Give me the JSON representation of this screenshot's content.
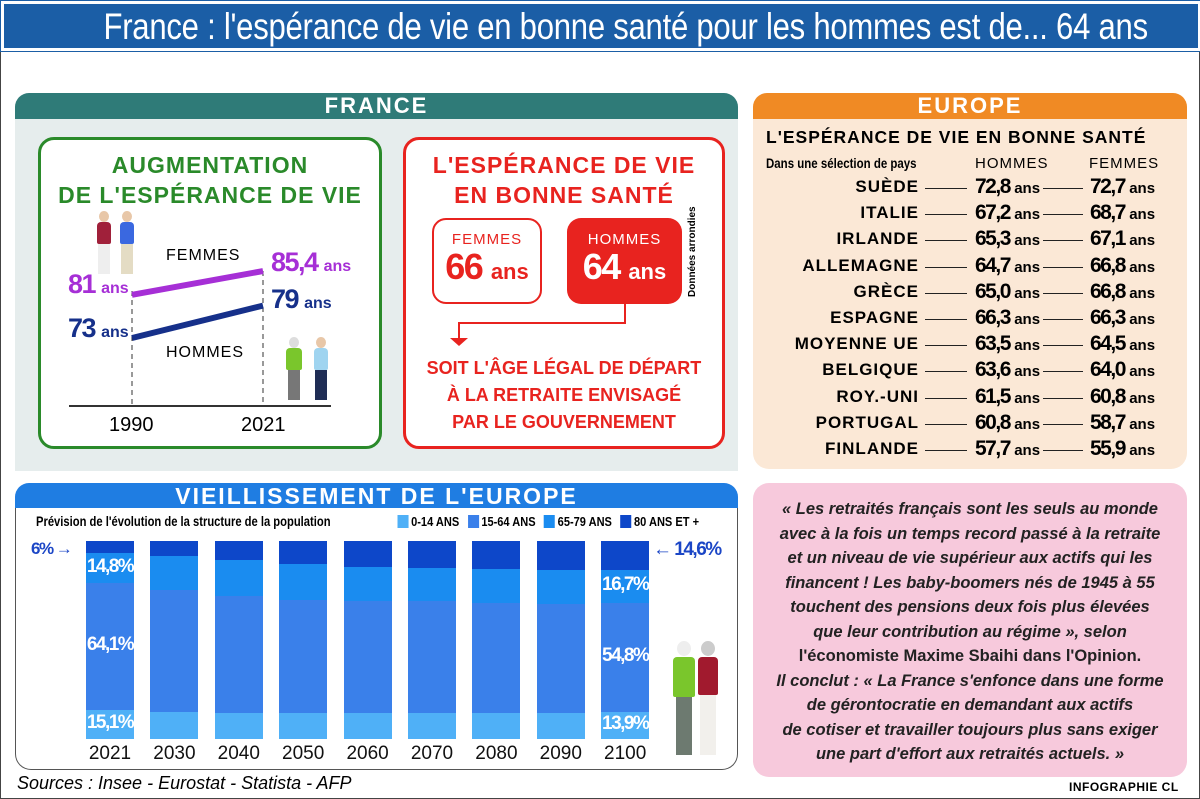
{
  "title": "France : l'espérance de vie en bonne santé pour les hommes est de... 64 ans",
  "colors": {
    "title_bar": "#1b5ea6",
    "france": "#2f7b78",
    "europe": "#f08a24",
    "aging": "#1f7de2",
    "green": "#2a8a2a",
    "red": "#e8231f",
    "femmes_line": "#a62fd6",
    "hommes_line": "#16308a"
  },
  "france": {
    "header": "FRANCE",
    "augmentation": {
      "title_line1": "AUGMENTATION",
      "title_line2": "DE L'ESPÉRANCE DE VIE",
      "femmes_label": "FEMMES",
      "hommes_label": "HOMMES",
      "femmes_1990": "81",
      "femmes_2021": "85,4",
      "hommes_1990": "73",
      "hommes_2021": "79",
      "unit": "ans",
      "year1": "1990",
      "year2": "2021"
    },
    "bonne_sante": {
      "title_line1": "L'ESPÉRANCE DE VIE",
      "title_line2": "EN BONNE SANTÉ",
      "femmes_label": "FEMMES",
      "femmes_value": "66",
      "hommes_label": "HOMMES",
      "hommes_value": "64",
      "unit": "ans",
      "note": "Données arrondies",
      "conclusion": [
        "SOIT L'ÂGE LÉGAL DE DÉPART",
        "À LA RETRAITE ENVISAGÉ",
        "PAR LE GOUVERNEMENT"
      ]
    }
  },
  "europe": {
    "header": "EUROPE",
    "title": "L'ESPÉRANCE DE VIE EN BONNE SANTÉ",
    "subtitle": "Dans une sélection de pays",
    "col_hommes": "HOMMES",
    "col_femmes": "FEMMES",
    "unit": "ans",
    "rows": [
      {
        "country": "SUÈDE",
        "hommes": "72,8",
        "femmes": "72,7"
      },
      {
        "country": "ITALIE",
        "hommes": "67,2",
        "femmes": "68,7"
      },
      {
        "country": "IRLANDE",
        "hommes": "65,3",
        "femmes": "67,1"
      },
      {
        "country": "ALLEMAGNE",
        "hommes": "64,7",
        "femmes": "66,8"
      },
      {
        "country": "GRÈCE",
        "hommes": "65,0",
        "femmes": "66,8"
      },
      {
        "country": "ESPAGNE",
        "hommes": "66,3",
        "femmes": "66,3"
      },
      {
        "country": "MOYENNE UE",
        "hommes": "63,5",
        "femmes": "64,5"
      },
      {
        "country": "BELGIQUE",
        "hommes": "63,6",
        "femmes": "64,0"
      },
      {
        "country": "ROY.-UNI",
        "hommes": "61,5",
        "femmes": "60,8"
      },
      {
        "country": "PORTUGAL",
        "hommes": "60,8",
        "femmes": "58,7"
      },
      {
        "country": "FINLANDE",
        "hommes": "57,7",
        "femmes": "55,9"
      }
    ]
  },
  "aging": {
    "header": "VIEILLISSEMENT DE L'EUROPE",
    "subtitle": "Prévision de l'évolution de la structure de la population",
    "label_80_2021": "6%",
    "label_80_2100": "14,6%",
    "labels_2021": {
      "a65_79": "14,8%",
      "a15_64": "64,1%",
      "a0_14": "15,1%"
    },
    "labels_2100": {
      "a65_79": "16,7%",
      "a15_64": "54,8%",
      "a0_14": "13,9%"
    }
  },
  "chart_data": [
    {
      "type": "line",
      "x": [
        "1990",
        "2021"
      ],
      "series": [
        {
          "name": "FEMMES",
          "values": [
            81,
            85.4
          ]
        },
        {
          "name": "HOMMES",
          "values": [
            73,
            79
          ]
        }
      ],
      "ylabel": "",
      "xlabel": "",
      "grid": false
    },
    {
      "type": "bar",
      "stacked": true,
      "title": "Prévision de l'évolution de la structure de la population",
      "categories": [
        "2021",
        "2030",
        "2040",
        "2050",
        "2060",
        "2070",
        "2080",
        "2090",
        "2100"
      ],
      "series": [
        {
          "name": "0-14 ANS",
          "color": "#4fb0f7",
          "values": [
            15.1,
            14.0,
            13.4,
            13.4,
            13.4,
            13.4,
            13.4,
            13.4,
            13.9
          ]
        },
        {
          "name": "15-64 ANS",
          "color": "#3a80ea",
          "values": [
            64.1,
            61.6,
            58.9,
            56.9,
            56.3,
            56.3,
            55.7,
            55.0,
            54.8
          ]
        },
        {
          "name": "65-79 ANS",
          "color": "#1a8cf0",
          "values": [
            14.8,
            17.0,
            18.3,
            18.1,
            17.5,
            16.9,
            17.1,
            17.3,
            16.7
          ]
        },
        {
          "name": "80 ANS ET +",
          "color": "#0d47c9",
          "values": [
            6.0,
            7.4,
            9.4,
            11.6,
            12.8,
            13.4,
            13.8,
            14.3,
            14.6
          ]
        }
      ],
      "ylim": [
        0,
        100
      ],
      "legend": "top-right",
      "grid": false
    }
  ],
  "quote": {
    "lines": [
      "« Les retraités français sont les seuls au monde",
      "avec à la fois un temps record passé à la retraite",
      "et un niveau de vie supérieur aux actifs qui les",
      "financent ! Les baby-boomers nés de 1945 à 55",
      "touchent des pensions deux fois plus élevées",
      "que leur contribution au régime », selon",
      "l'économiste Maxime Sbaihi dans l'Opinion.",
      "Il conclut : « La France s'enfonce dans une forme",
      "de gérontocratie en demandant aux actifs",
      "de cotiser et travailler toujours plus sans exiger",
      "une part d'effort aux retraités actuels. »"
    ]
  },
  "sources": "Sources : Insee - Eurostat - Statista - AFP",
  "credit": "INFOGRAPHIE CL"
}
